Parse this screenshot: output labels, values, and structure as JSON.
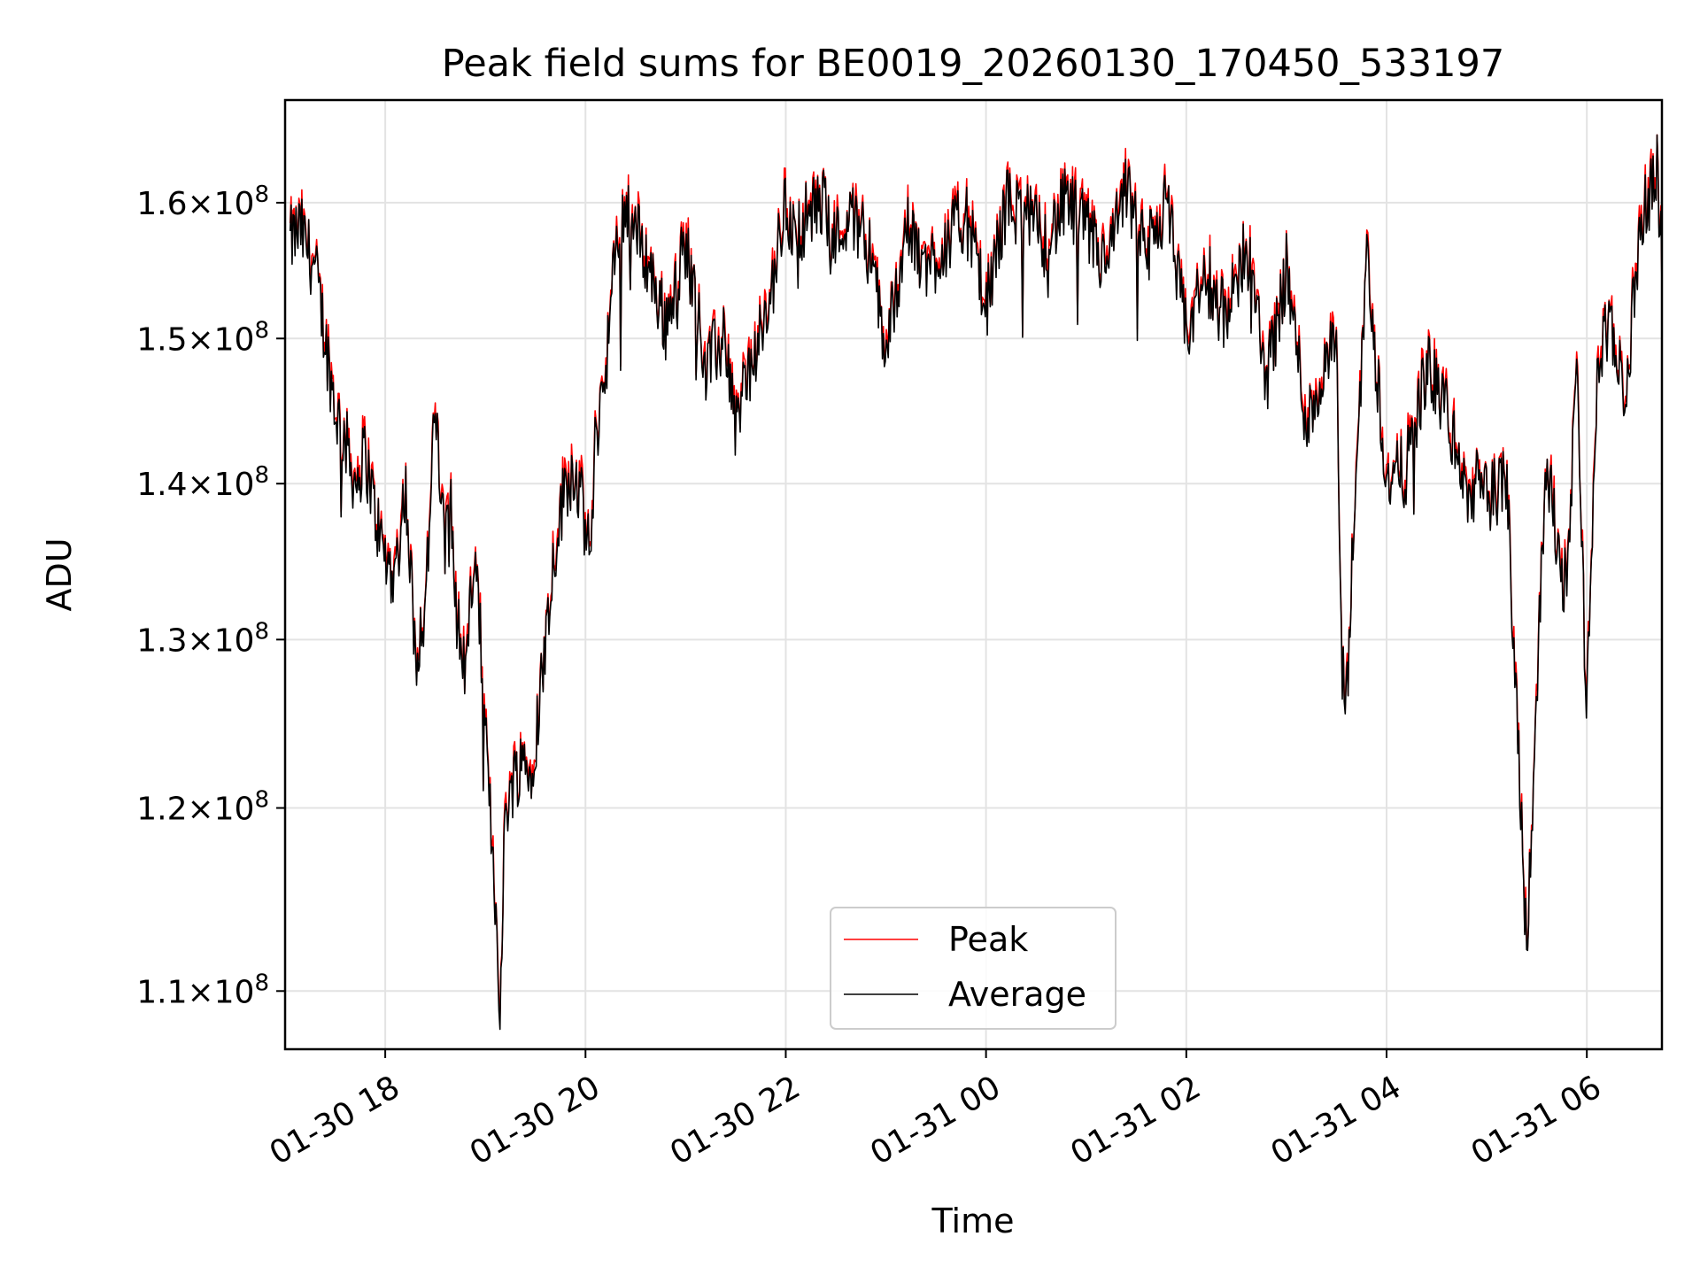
{
  "chart_data": {
    "type": "line",
    "title": "Peak field sums for BE0019_20260130_170450_533197",
    "xlabel": "Time",
    "ylabel": "ADU",
    "grid": true,
    "legend_position": "lower-center",
    "x_range_hours": [
      -1.0,
      12.75
    ],
    "x_zero_label": "01-30 18",
    "ylim": [
      107000000,
      168000000
    ],
    "y_scale": "log",
    "x_ticks": [
      {
        "hour": 0,
        "label": "01-30 18"
      },
      {
        "hour": 2,
        "label": "01-30 20"
      },
      {
        "hour": 4,
        "label": "01-30 22"
      },
      {
        "hour": 6,
        "label": "01-31 00"
      },
      {
        "hour": 8,
        "label": "01-31 02"
      },
      {
        "hour": 10,
        "label": "01-31 04"
      },
      {
        "hour": 12,
        "label": "01-31 06"
      }
    ],
    "y_ticks": [
      {
        "value": 110000000,
        "mantissa": "1.1",
        "exp": "8"
      },
      {
        "value": 120000000,
        "mantissa": "1.2",
        "exp": "8"
      },
      {
        "value": 130000000,
        "mantissa": "1.3",
        "exp": "8"
      },
      {
        "value": 140000000,
        "mantissa": "1.4",
        "exp": "8"
      },
      {
        "value": 150000000,
        "mantissa": "1.5",
        "exp": "8"
      },
      {
        "value": 160000000,
        "mantissa": "1.6",
        "exp": "8"
      }
    ],
    "series": [
      {
        "name": "Peak",
        "color": "#ff0000"
      },
      {
        "name": "Average",
        "color": "#000000"
      }
    ],
    "average_keypoints_x_hours": [
      -0.95,
      -0.85,
      -0.7,
      -0.6,
      -0.5,
      -0.4,
      -0.3,
      -0.2,
      -0.1,
      0.0,
      0.1,
      0.2,
      0.3,
      0.4,
      0.5,
      0.6,
      0.65,
      0.7,
      0.8,
      0.9,
      1.0,
      1.1,
      1.15,
      1.2,
      1.3,
      1.4,
      1.45,
      1.5,
      1.6,
      1.7,
      1.8,
      1.9,
      2.0,
      2.05,
      2.1,
      2.2,
      2.3,
      2.4,
      2.5,
      2.6,
      2.8,
      3.0,
      3.2,
      3.4,
      3.5,
      3.6,
      3.8,
      4.0,
      4.1,
      4.2,
      4.4,
      4.5,
      4.6,
      4.8,
      5.0,
      5.2,
      5.4,
      5.6,
      5.8,
      6.0,
      6.2,
      6.4,
      6.6,
      6.8,
      7.0,
      7.2,
      7.4,
      7.6,
      7.8,
      8.0,
      8.2,
      8.4,
      8.6,
      8.8,
      9.0,
      9.2,
      9.4,
      9.5,
      9.55,
      9.6,
      9.8,
      10.0,
      10.2,
      10.4,
      10.6,
      10.8,
      10.9,
      11.0,
      11.2,
      11.4,
      11.6,
      11.7,
      11.8,
      11.9,
      12.0,
      12.1,
      12.2,
      12.4,
      12.5,
      12.6,
      12.7,
      12.75
    ],
    "average_keypoints_y": [
      157000000,
      158000000,
      155000000,
      150000000,
      145000000,
      143000000,
      140000000,
      142000000,
      138000000,
      135000000,
      134000000,
      140000000,
      129000000,
      132000000,
      145000000,
      135000000,
      141000000,
      132000000,
      128000000,
      136000000,
      124000000,
      115000000,
      109000000,
      120000000,
      122000000,
      123000000,
      122000000,
      124000000,
      130000000,
      136000000,
      140000000,
      141000000,
      137000000,
      135000000,
      143000000,
      148000000,
      156000000,
      160000000,
      158000000,
      156000000,
      151000000,
      157000000,
      148000000,
      150000000,
      144000000,
      147000000,
      151000000,
      160000000,
      157000000,
      159000000,
      160000000,
      157000000,
      159000000,
      158000000,
      149000000,
      158000000,
      155000000,
      157000000,
      159000000,
      152000000,
      160000000,
      159000000,
      157000000,
      160000000,
      158000000,
      155000000,
      161000000,
      156000000,
      160000000,
      150000000,
      155000000,
      151000000,
      157000000,
      147000000,
      155000000,
      144000000,
      148000000,
      150000000,
      128000000,
      126000000,
      156000000,
      140000000,
      141000000,
      148000000,
      145000000,
      139000000,
      140000000,
      139000000,
      140000000,
      112000000,
      142000000,
      136000000,
      133000000,
      148000000,
      125000000,
      147000000,
      151000000,
      146000000,
      156000000,
      160000000,
      163000000,
      156000000
    ]
  }
}
